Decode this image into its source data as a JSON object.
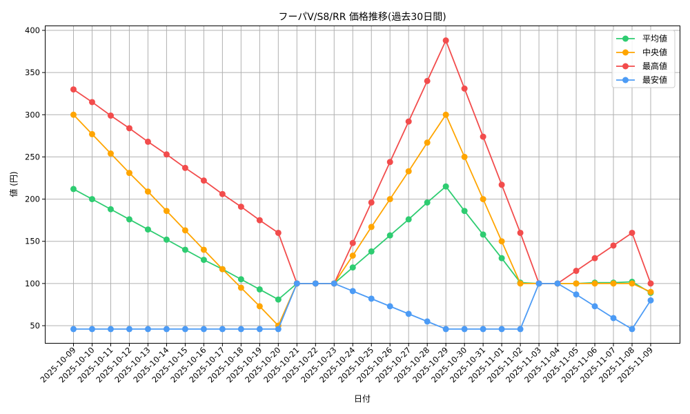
{
  "chart_data": {
    "type": "line",
    "title": "フーパV/S8/RR 価格推移(過去30日間)",
    "xlabel": "日付",
    "ylabel": "値 (円)",
    "ylim": [
      30,
      405
    ],
    "yticks": [
      50,
      100,
      150,
      200,
      250,
      300,
      350,
      400
    ],
    "grid": true,
    "legend_position": "upper right",
    "x": [
      "2025-10-09",
      "2025-10-10",
      "2025-10-11",
      "2025-10-12",
      "2025-10-13",
      "2025-10-14",
      "2025-10-15",
      "2025-10-16",
      "2025-10-17",
      "2025-10-18",
      "2025-10-19",
      "2025-10-20",
      "2025-10-21",
      "2025-10-22",
      "2025-10-23",
      "2025-10-24",
      "2025-10-25",
      "2025-10-26",
      "2025-10-27",
      "2025-10-28",
      "2025-10-29",
      "2025-10-30",
      "2025-10-31",
      "2025-11-01",
      "2025-11-02",
      "2025-11-03",
      "2025-11-04",
      "2025-11-05",
      "2025-11-06",
      "2025-11-07",
      "2025-11-08",
      "2025-11-09"
    ],
    "series": [
      {
        "name": "平均値",
        "color": "#2ecc71",
        "values": [
          212,
          200,
          188,
          176,
          164,
          152,
          140,
          128,
          117,
          105,
          93,
          81,
          100,
          100,
          100,
          119,
          138,
          157,
          176,
          196,
          215,
          186,
          158,
          130,
          101,
          100,
          100,
          100,
          101,
          101,
          102,
          89
        ]
      },
      {
        "name": "中央値",
        "color": "#ffa500",
        "values": [
          300,
          277,
          254,
          231,
          209,
          186,
          163,
          140,
          117,
          95,
          73,
          50,
          100,
          100,
          100,
          133,
          167,
          200,
          233,
          267,
          300,
          250,
          200,
          150,
          100,
          100,
          100,
          100,
          100,
          100,
          100,
          90
        ]
      },
      {
        "name": "最高値",
        "color": "#f24c4c",
        "values": [
          330,
          315,
          299,
          284,
          268,
          253,
          237,
          222,
          206,
          191,
          175,
          160,
          100,
          100,
          100,
          148,
          196,
          244,
          292,
          340,
          388,
          331,
          274,
          217,
          160,
          100,
          100,
          115,
          130,
          145,
          160,
          100
        ]
      },
      {
        "name": "最安値",
        "color": "#4c9bf5",
        "values": [
          46,
          46,
          46,
          46,
          46,
          46,
          46,
          46,
          46,
          46,
          46,
          46,
          100,
          100,
          100,
          91,
          82,
          73,
          64,
          55,
          46,
          46,
          46,
          46,
          46,
          100,
          100,
          87,
          73,
          59,
          46,
          80
        ]
      }
    ]
  }
}
